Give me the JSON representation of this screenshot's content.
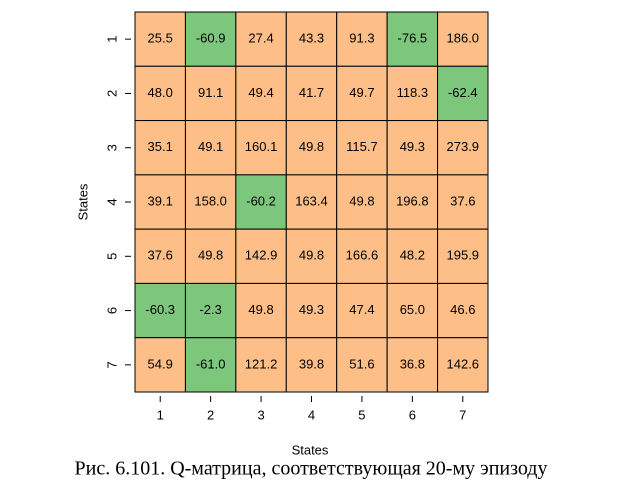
{
  "chart_data": {
    "type": "heatmap",
    "x_label": "States",
    "y_label": "States",
    "caption": "Рис. 6.101. Q-матрица, соответствующая 20-му эпизоду",
    "x_categories": [
      "1",
      "2",
      "3",
      "4",
      "5",
      "6",
      "7"
    ],
    "y_categories": [
      "1",
      "2",
      "3",
      "4",
      "5",
      "6",
      "7"
    ],
    "values": [
      [
        25.5,
        -60.9,
        27.4,
        43.3,
        91.3,
        -76.5,
        186.0
      ],
      [
        48.0,
        91.1,
        49.4,
        41.7,
        49.7,
        118.3,
        -62.4
      ],
      [
        35.1,
        49.1,
        160.1,
        49.8,
        115.7,
        49.3,
        273.9
      ],
      [
        39.1,
        158.0,
        -60.2,
        163.4,
        49.8,
        196.8,
        37.6
      ],
      [
        37.6,
        49.8,
        142.9,
        49.8,
        166.6,
        48.2,
        195.9
      ],
      [
        -60.3,
        -2.3,
        49.8,
        49.3,
        47.4,
        65.0,
        46.6
      ],
      [
        54.9,
        -61.0,
        121.2,
        39.8,
        51.6,
        36.8,
        142.6
      ]
    ],
    "value_labels": [
      [
        "25.5",
        "-60.9",
        "27.4",
        "43.3",
        "91.3",
        "-76.5",
        "186.0"
      ],
      [
        "48.0",
        "91.1",
        "49.4",
        "41.7",
        "49.7",
        "118.3",
        "-62.4"
      ],
      [
        "35.1",
        "49.1",
        "160.1",
        "49.8",
        "115.7",
        "49.3",
        "273.9"
      ],
      [
        "39.1",
        "158.0",
        "-60.2",
        "163.4",
        "49.8",
        "196.8",
        "37.6"
      ],
      [
        "37.6",
        "49.8",
        "142.9",
        "49.8",
        "166.6",
        "48.2",
        "195.9"
      ],
      [
        "-60.3",
        "-2.3",
        "49.8",
        "49.3",
        "47.4",
        "65.0",
        "46.6"
      ],
      [
        "54.9",
        "-61.0",
        "121.2",
        "39.8",
        "51.6",
        "36.8",
        "142.6"
      ]
    ],
    "negative_color": "#7dc77d",
    "positive_color": "#fdbf87"
  }
}
